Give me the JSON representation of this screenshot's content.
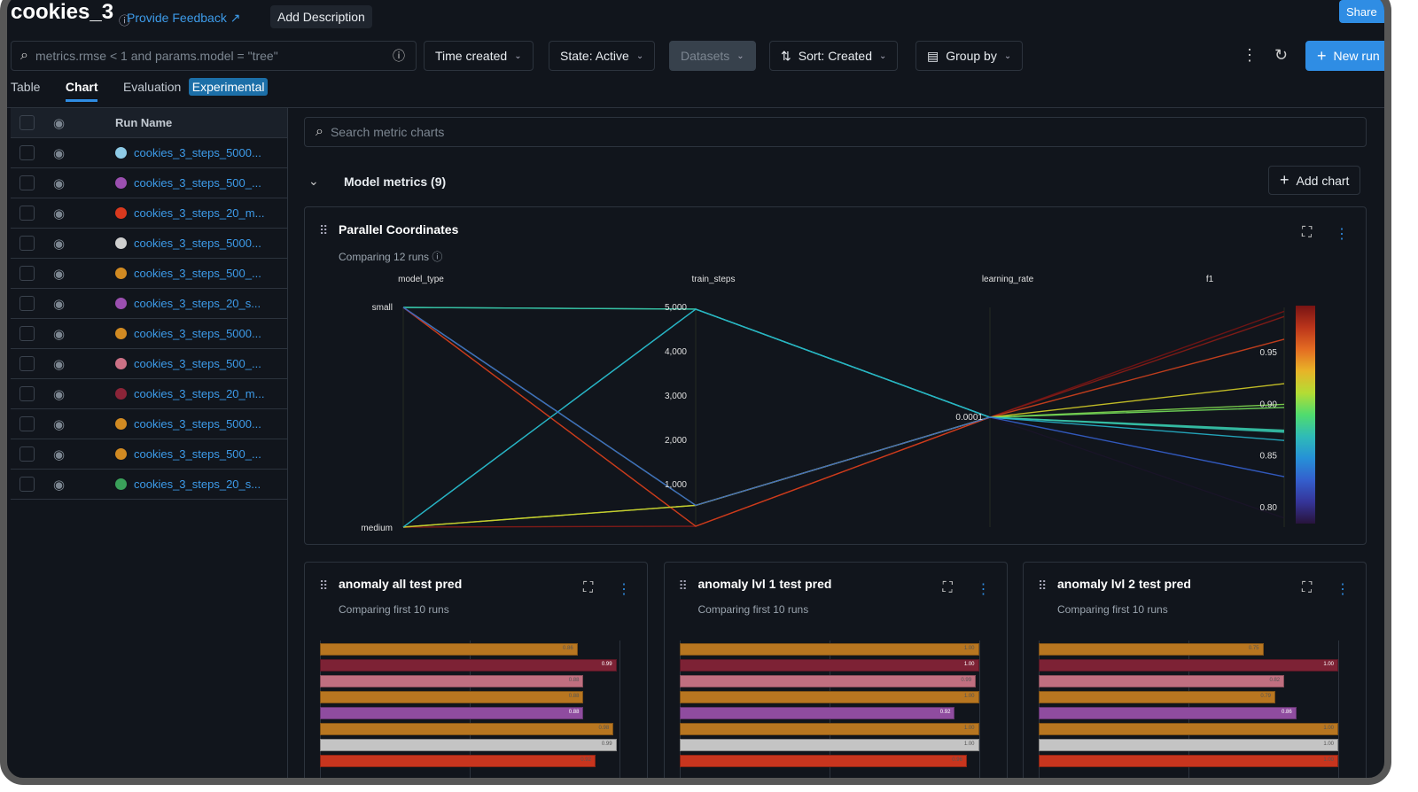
{
  "header": {
    "title": "cookies_3",
    "feedback": "Provide Feedback",
    "add_description": "Add Description",
    "share": "Share"
  },
  "toolbar": {
    "search_placeholder": "metrics.rmse < 1 and params.model = \"tree\"",
    "time_created": "Time created",
    "state": "State: Active",
    "datasets": "Datasets",
    "sort": "Sort: Created",
    "group_by": "Group by",
    "new_run": "New run"
  },
  "tabs": {
    "table": "Table",
    "chart": "Chart",
    "evaluation": "Evaluation",
    "experimental": "Experimental"
  },
  "sidebar": {
    "header": "Run Name",
    "runs": [
      {
        "name": "cookies_3_steps_5000...",
        "color": "#8ecae6"
      },
      {
        "name": "cookies_3_steps_500_...",
        "color": "#9b4fb0"
      },
      {
        "name": "cookies_3_steps_20_m...",
        "color": "#d9391e"
      },
      {
        "name": "cookies_3_steps_5000...",
        "color": "#cfcfcf"
      },
      {
        "name": "cookies_3_steps_500_...",
        "color": "#d18a22"
      },
      {
        "name": "cookies_3_steps_20_s...",
        "color": "#9b4fb0"
      },
      {
        "name": "cookies_3_steps_5000...",
        "color": "#d18a22"
      },
      {
        "name": "cookies_3_steps_500_...",
        "color": "#cc7186"
      },
      {
        "name": "cookies_3_steps_20_m...",
        "color": "#8b2438"
      },
      {
        "name": "cookies_3_steps_5000...",
        "color": "#d18a22"
      },
      {
        "name": "cookies_3_steps_500_...",
        "color": "#d18a22"
      },
      {
        "name": "cookies_3_steps_20_s...",
        "color": "#3aa05a"
      }
    ]
  },
  "main": {
    "search_placeholder": "Search metric charts",
    "section": "Model metrics (9)",
    "add_chart": "Add chart"
  },
  "chart_data": [
    {
      "type": "parallel-coordinates",
      "title": "Parallel Coordinates",
      "subtitle": "Comparing 12 runs",
      "axes": [
        "model_type",
        "train_steps",
        "learning_rate",
        "f1"
      ],
      "model_type_ticks": [
        "small",
        "medium"
      ],
      "train_steps_ticks": [
        "5,000",
        "4,000",
        "3,000",
        "2,000",
        "1,000"
      ],
      "learning_rate_ticks": [
        "0.0001"
      ],
      "f1_ticks": [
        "0.95",
        "0.90",
        "0.85",
        "0.80"
      ],
      "colorscale_range": [
        0.79,
        0.99
      ],
      "lines": [
        {
          "model_type": "small",
          "train_steps": 5000,
          "learning_rate": 0.0001,
          "f1": 0.874
        },
        {
          "model_type": "small",
          "train_steps": 500,
          "learning_rate": 0.0001,
          "f1": 0.9
        },
        {
          "model_type": "medium",
          "train_steps": 5000,
          "learning_rate": 0.0001,
          "f1": 0.873
        },
        {
          "model_type": "medium",
          "train_steps": 500,
          "learning_rate": 0.0001,
          "f1": 0.897
        },
        {
          "model_type": "medium",
          "train_steps": 20,
          "learning_rate": 0.0001,
          "f1": 0.79
        },
        {
          "model_type": "small",
          "train_steps": 20,
          "learning_rate": 0.0001,
          "f1": 0.99
        },
        {
          "model_type": "medium",
          "train_steps": 20,
          "learning_rate": 0.0001,
          "f1": 0.985
        },
        {
          "model_type": "small",
          "train_steps": 20,
          "learning_rate": 0.0001,
          "f1": 0.963
        },
        {
          "model_type": "medium",
          "train_steps": 500,
          "learning_rate": 0.0001,
          "f1": 0.92
        },
        {
          "model_type": "small",
          "train_steps": 5000,
          "learning_rate": 0.0001,
          "f1": 0.875
        },
        {
          "model_type": "medium",
          "train_steps": 5000,
          "learning_rate": 0.0001,
          "f1": 0.865
        },
        {
          "model_type": "small",
          "train_steps": 500,
          "learning_rate": 0.0001,
          "f1": 0.83
        }
      ]
    },
    {
      "type": "bar",
      "title": "anomaly all test pred",
      "subtitle": "Comparing first 10 runs",
      "xlim": [
        0,
        1
      ],
      "values": [
        0.86,
        0.99,
        0.88,
        0.88,
        0.88,
        0.98,
        0.99,
        0.92
      ],
      "labels": [
        "0.86",
        "0.99",
        "0.88",
        "0.88",
        "0.88",
        "0.98",
        "0.99",
        "0.92"
      ],
      "colors": [
        "#b87620",
        "#7d2235",
        "#c06f80",
        "#b87620",
        "#8f4c9f",
        "#b87620",
        "#c4c4c4",
        "#c8351e"
      ]
    },
    {
      "type": "bar",
      "title": "anomaly lvl 1 test pred",
      "subtitle": "Comparing first 10 runs",
      "xlim": [
        0,
        1
      ],
      "values": [
        1.0,
        1.0,
        0.99,
        1.0,
        0.92,
        1.0,
        1.0,
        0.96
      ],
      "labels": [
        "1.00",
        "1.00",
        "0.99",
        "1.00",
        "0.92",
        "1.00",
        "1.00",
        "0.96"
      ],
      "colors": [
        "#b87620",
        "#7d2235",
        "#c06f80",
        "#b87620",
        "#8f4c9f",
        "#b87620",
        "#c4c4c4",
        "#c8351e"
      ]
    },
    {
      "type": "bar",
      "title": "anomaly lvl 2 test pred",
      "subtitle": "Comparing first 10 runs",
      "xlim": [
        0,
        1
      ],
      "values": [
        0.75,
        1.0,
        0.82,
        0.79,
        0.86,
        1.0,
        1.0,
        1.0
      ],
      "labels": [
        "0.75",
        "1.00",
        "0.82",
        "0.79",
        "0.86",
        "1.00",
        "1.00",
        "1.00"
      ],
      "colors": [
        "#b87620",
        "#7d2235",
        "#c06f80",
        "#b87620",
        "#8f4c9f",
        "#b87620",
        "#c4c4c4",
        "#c8351e"
      ]
    }
  ]
}
